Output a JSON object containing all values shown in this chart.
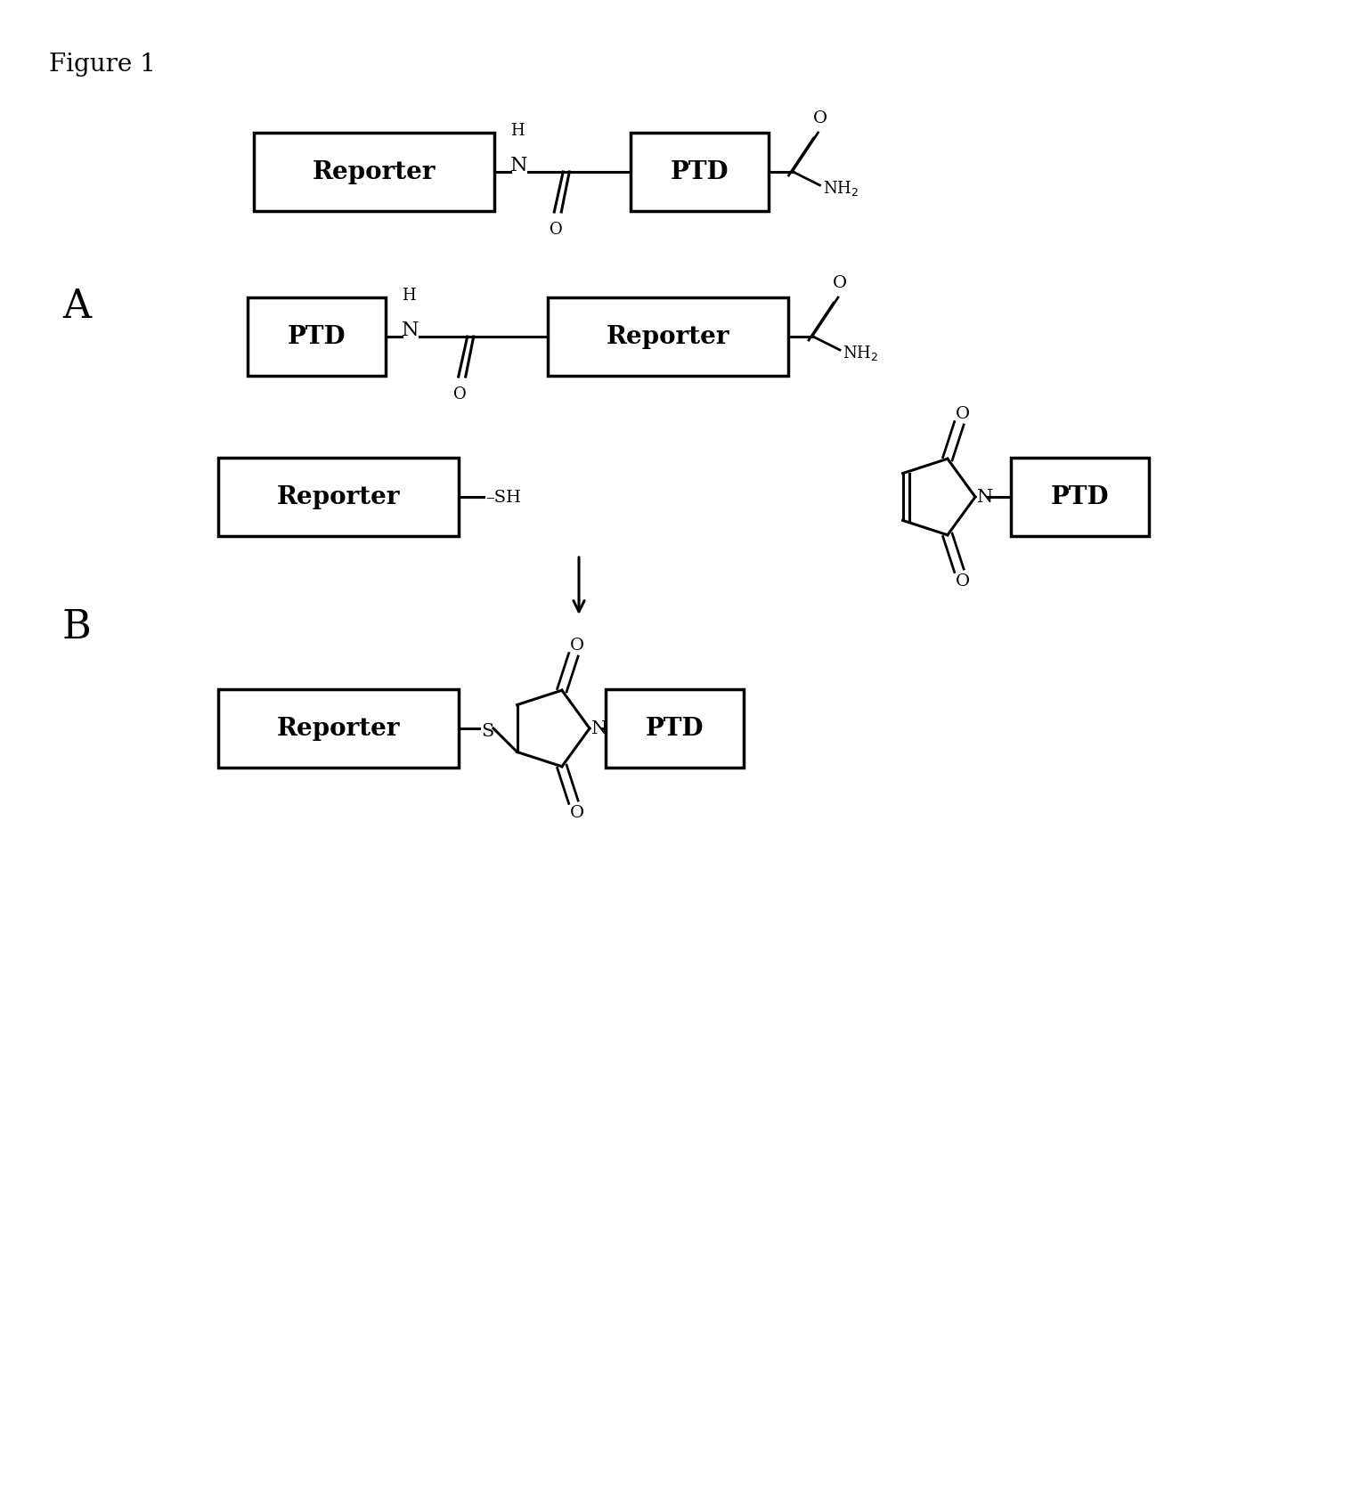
{
  "title": "Figure 1",
  "bg_color": "#ffffff",
  "label_A": "A",
  "label_B": "B",
  "reporter_label": "Reporter",
  "ptd_label": "PTD"
}
